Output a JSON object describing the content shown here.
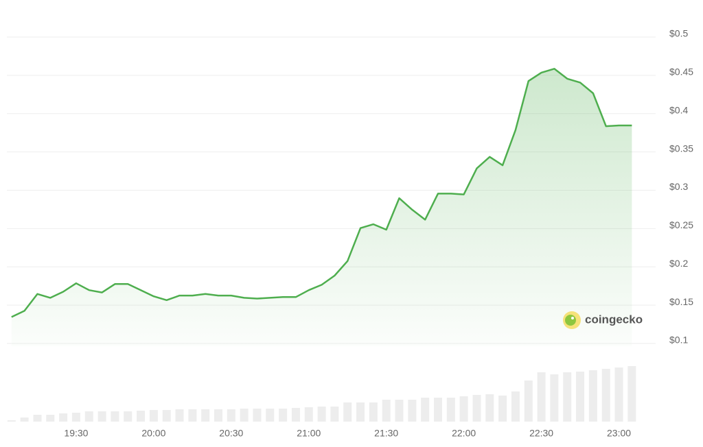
{
  "chart_data": {
    "type": "line",
    "x": [
      "19:05",
      "19:10",
      "19:15",
      "19:20",
      "19:25",
      "19:30",
      "19:35",
      "19:40",
      "19:45",
      "19:50",
      "19:55",
      "20:00",
      "20:05",
      "20:10",
      "20:15",
      "20:20",
      "20:25",
      "20:30",
      "20:35",
      "20:40",
      "20:45",
      "20:50",
      "20:55",
      "21:00",
      "21:05",
      "21:10",
      "21:15",
      "21:20",
      "21:25",
      "21:30",
      "21:35",
      "21:40",
      "21:45",
      "21:50",
      "21:55",
      "22:00",
      "22:05",
      "22:10",
      "22:15",
      "22:20",
      "22:25",
      "22:30",
      "22:35",
      "22:40",
      "22:45",
      "22:50",
      "22:55",
      "23:00",
      "23:05"
    ],
    "series": [
      {
        "color": "#4eae4e",
        "values": [
          0.131,
          0.139,
          0.161,
          0.156,
          0.164,
          0.175,
          0.166,
          0.163,
          0.174,
          0.174,
          0.166,
          0.158,
          0.153,
          0.159,
          0.159,
          0.161,
          0.159,
          0.159,
          0.156,
          0.155,
          0.156,
          0.157,
          0.157,
          0.166,
          0.173,
          0.185,
          0.204,
          0.247,
          0.252,
          0.245,
          0.286,
          0.271,
          0.258,
          0.292,
          0.292,
          0.291,
          0.325,
          0.34,
          0.329,
          0.375,
          0.439,
          0.45,
          0.455,
          0.442,
          0.437,
          0.423,
          0.38,
          0.381,
          0.381
        ]
      }
    ],
    "volume": {
      "color": "#ededed",
      "values": [
        2,
        6,
        10,
        10,
        12,
        13,
        15,
        15,
        15,
        15,
        16,
        17,
        17,
        18,
        18,
        18,
        18,
        18,
        19,
        19,
        19,
        19,
        20,
        21,
        22,
        22,
        28,
        28,
        28,
        32,
        32,
        32,
        35,
        35,
        35,
        37,
        39,
        40,
        38,
        44,
        60,
        72,
        69,
        72,
        73,
        75,
        77,
        79,
        81
      ]
    },
    "xlim": [
      "19:00",
      "23:15"
    ],
    "xticks": [
      "19:30",
      "20:00",
      "20:30",
      "21:00",
      "21:30",
      "22:00",
      "22:30",
      "23:00"
    ],
    "ylim": [
      0.1,
      0.5
    ],
    "yticks": [
      {
        "value": 0.1,
        "label": "$0.1"
      },
      {
        "value": 0.15,
        "label": "$0.15"
      },
      {
        "value": 0.2,
        "label": "$0.2"
      },
      {
        "value": 0.25,
        "label": "$0.25"
      },
      {
        "value": 0.3,
        "label": "$0.3"
      },
      {
        "value": 0.35,
        "label": "$0.35"
      },
      {
        "value": 0.4,
        "label": "$0.4"
      },
      {
        "value": 0.45,
        "label": "$0.45"
      },
      {
        "value": 0.5,
        "label": "$0.5"
      }
    ],
    "grid": true,
    "watermark": "coingecko"
  }
}
